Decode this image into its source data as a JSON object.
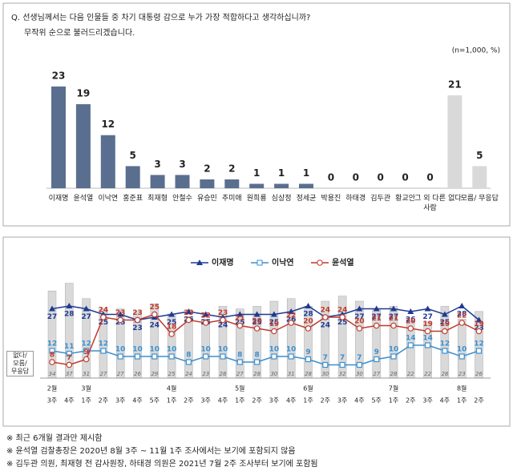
{
  "chart_data": [
    {
      "type": "bar",
      "title": "Q. 선생님께서는 다음 인물들 중 차기 대통령 감으로 누가 가장 적합하다고 생각하십니까?",
      "subtitle": "무작위 순으로 불러드리겠습니다.",
      "annotation": "(n=1,000, %)",
      "categories": [
        "이재명",
        "윤석열",
        "이낙연",
        "홍준표",
        "최재형",
        "안철수",
        "유승민",
        "추미애",
        "원희룡",
        "심상정",
        "정세균",
        "박용진",
        "하태경",
        "김두관",
        "황교안",
        "그 외 다른 사람",
        "없다",
        "모름/ 무응답"
      ],
      "values": [
        23,
        19,
        12,
        5,
        3,
        3,
        2,
        2,
        1,
        1,
        1,
        0,
        0,
        0,
        0,
        0,
        21,
        5
      ],
      "colors": [
        "#5a6f8f",
        "#5a6f8f",
        "#5a6f8f",
        "#5a6f8f",
        "#5a6f8f",
        "#5a6f8f",
        "#5a6f8f",
        "#5a6f8f",
        "#5a6f8f",
        "#5a6f8f",
        "#5a6f8f",
        "#5a6f8f",
        "#5a6f8f",
        "#5a6f8f",
        "#5a6f8f",
        "#5a6f8f",
        "#d9d9d9",
        "#d9d9d9"
      ]
    },
    {
      "type": "line",
      "months": [
        "2월",
        null,
        "3월",
        null,
        null,
        null,
        null,
        "4월",
        null,
        null,
        null,
        "5월",
        null,
        null,
        null,
        "6월",
        null,
        null,
        null,
        null,
        "7월",
        null,
        null,
        null,
        "8월",
        null
      ],
      "categories": [
        "3주",
        "4주",
        "1주",
        "2주",
        "3주",
        "4주",
        "5주",
        "1주",
        "2주",
        "3주",
        "4주",
        "1주",
        "2주",
        "3주",
        "4주",
        "1주",
        "2주",
        "3주",
        "4주",
        "5주",
        "1주",
        "2주",
        "3주",
        "4주",
        "1주",
        "2주"
      ],
      "bars": {
        "name": "없다/ 모름/ 무응답",
        "color": "#d9d9d9",
        "values": [
          34,
          37,
          31,
          27,
          27,
          26,
          29,
          25,
          24,
          23,
          28,
          27,
          28,
          30,
          31,
          28,
          30,
          32,
          30,
          27,
          28,
          22,
          22,
          28,
          23,
          26
        ]
      },
      "series": [
        {
          "name": "이재명",
          "color": "#1f3a93",
          "marker": "triangle",
          "values": [
            27,
            28,
            27,
            25,
            25,
            23,
            24,
            25,
            26,
            25,
            24,
            25,
            25,
            25,
            26,
            28,
            24,
            25,
            27,
            27,
            27,
            26,
            27,
            25,
            28,
            23
          ]
        },
        {
          "name": "이낙연",
          "color": "#3a8fd0",
          "marker": "square",
          "values": [
            12,
            11,
            12,
            12,
            10,
            10,
            10,
            10,
            8,
            10,
            10,
            8,
            8,
            10,
            10,
            9,
            7,
            7,
            7,
            9,
            10,
            14,
            14,
            12,
            10,
            12
          ]
        },
        {
          "name": "윤석열",
          "color": "#c0392b",
          "marker": "circle",
          "values": [
            8,
            7,
            9,
            24,
            23,
            23,
            25,
            18,
            23,
            22,
            23,
            21,
            20,
            19,
            22,
            20,
            24,
            24,
            20,
            21,
            21,
            20,
            19,
            19,
            22,
            19
          ]
        }
      ]
    }
  ],
  "footnotes": [
    "※ 최근 6개월 결과만 제시함",
    "※ 윤석열 검찰총장은 2020년 8월 3주 ~ 11월 1주 조사에서는 보기에 포함되지 않음",
    "※ 김두관 의원, 최재형 전 감사원장, 하태경 의원은 2021년 7월 2주 조사부터 보기에 포함됨"
  ]
}
